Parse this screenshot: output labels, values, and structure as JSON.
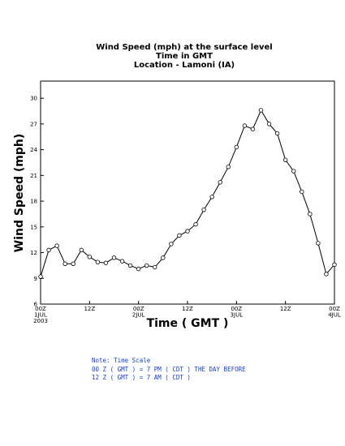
{
  "chart_data": {
    "type": "line",
    "title_lines": [
      "Wind Speed (mph) at the surface level",
      "Time in GMT",
      "Location - Lamoni (IA)"
    ],
    "xlabel": "Time ( GMT )",
    "ylabel": "Wind Speed (mph)",
    "ylim": [
      6,
      32
    ],
    "yticks": [
      6,
      9,
      12,
      15,
      18,
      21,
      24,
      27,
      30
    ],
    "xlim": [
      0,
      72
    ],
    "xticks": [
      {
        "x": 0,
        "lines": [
          "00Z",
          "1JUL",
          "2003"
        ]
      },
      {
        "x": 12,
        "lines": [
          "12Z"
        ]
      },
      {
        "x": 24,
        "lines": [
          "00Z",
          "2JUL"
        ]
      },
      {
        "x": 36,
        "lines": [
          "12Z"
        ]
      },
      {
        "x": 48,
        "lines": [
          "00Z",
          "3JUL"
        ]
      },
      {
        "x": 60,
        "lines": [
          "12Z"
        ]
      },
      {
        "x": 72,
        "lines": [
          "00Z",
          "4JUL"
        ]
      }
    ],
    "series": [
      {
        "x": [
          0,
          2,
          4,
          6,
          8,
          10,
          12,
          14,
          16,
          18,
          20,
          22,
          24,
          26,
          28,
          30,
          32,
          34,
          36,
          38,
          40,
          42,
          44,
          46,
          48,
          50,
          52,
          54,
          56,
          58,
          60,
          62,
          64,
          66,
          68,
          70,
          72
        ],
        "values": [
          9.2,
          12.3,
          12.8,
          10.7,
          10.7,
          12.3,
          11.5,
          10.9,
          10.8,
          11.4,
          11.0,
          10.5,
          10.1,
          10.5,
          10.3,
          11.4,
          13.0,
          14.0,
          14.5,
          15.3,
          17.0,
          18.5,
          20.2,
          22.0,
          24.3,
          26.8,
          26.4,
          28.6,
          27.0,
          25.9,
          22.8,
          21.5,
          19.1,
          16.5,
          13.1,
          9.5,
          10.6
        ]
      }
    ],
    "grid": false,
    "legend": false
  },
  "note": {
    "lines": [
      "Note: Time Scale",
      "00 Z ( GMT ) = 7 PM ( CDT ) THE DAY BEFORE",
      "12 Z ( GMT ) = 7 AM ( CDT )"
    ]
  },
  "colors": {
    "line": "#000000",
    "note": "#1a3fc8"
  }
}
